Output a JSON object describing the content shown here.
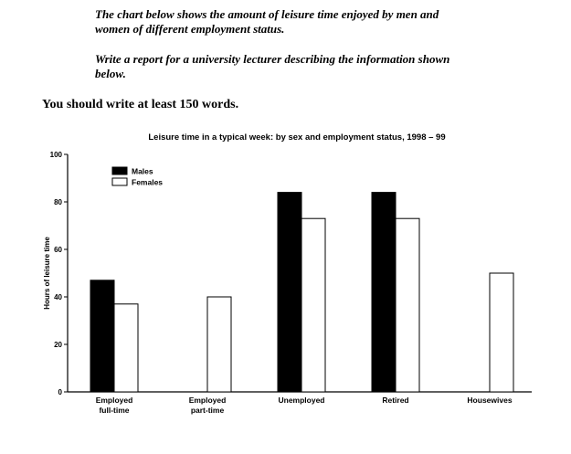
{
  "task": {
    "line1": "The chart below shows the amount of leisure time enjoyed by men and",
    "line2": "women of different employment status.",
    "line3": "Write a report for a university lecturer describing the information shown",
    "line4": "below.",
    "instruction": "You should write at least 150 words."
  },
  "chart_data": {
    "type": "bar",
    "title": "Leisure time in a typical week: by sex and employment status, 1998 – 99",
    "xlabel": "",
    "ylabel": "Hours of leisure time",
    "ylim": [
      0,
      100
    ],
    "yticks": [
      "0",
      "20",
      "40",
      "60",
      "80",
      "100"
    ],
    "grid": false,
    "legend_position": "top-left",
    "categories": [
      "Employed full-time",
      "Employed part-time",
      "Unemployed",
      "Retired",
      "Housewives"
    ],
    "series": [
      {
        "name": "Males",
        "color": "#000000",
        "values": [
          47,
          null,
          84,
          84,
          null
        ]
      },
      {
        "name": "Females",
        "color": "#ffffff",
        "values": [
          37,
          40,
          73,
          73,
          50
        ]
      }
    ]
  }
}
